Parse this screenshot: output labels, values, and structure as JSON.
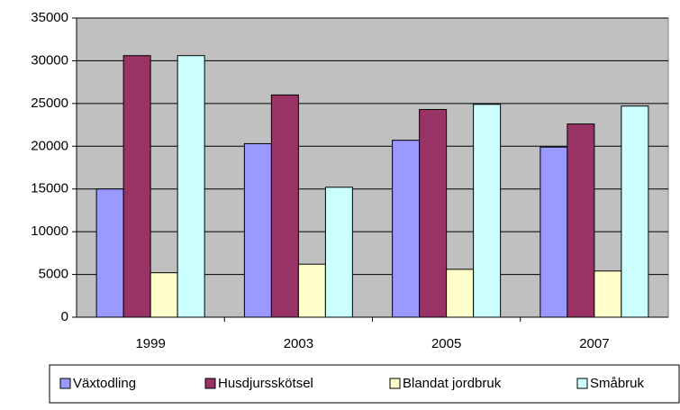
{
  "chart_data": {
    "type": "bar",
    "categories": [
      "1999",
      "2003",
      "2005",
      "2007"
    ],
    "series": [
      {
        "name": "Växtodling",
        "color": "#9999ff",
        "values": [
          15000,
          20300,
          20700,
          19900
        ]
      },
      {
        "name": "Husdjursskötsel",
        "color": "#993366",
        "values": [
          30600,
          26000,
          24300,
          22600
        ]
      },
      {
        "name": "Blandat jordbruk",
        "color": "#ffffcc",
        "values": [
          5200,
          6200,
          5600,
          5400
        ]
      },
      {
        "name": "Småbruk",
        "color": "#ccffff",
        "values": [
          30600,
          15200,
          24900,
          24700
        ]
      }
    ],
    "ylim": [
      0,
      35000
    ],
    "yticks": [
      0,
      5000,
      10000,
      15000,
      20000,
      25000,
      30000,
      35000
    ],
    "grid": true,
    "legend": "bottom",
    "plot_background": "#c0c0c0"
  }
}
